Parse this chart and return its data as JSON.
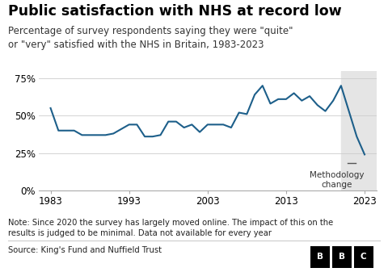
{
  "title": "Public satisfaction with NHS at record low",
  "subtitle": "Percentage of survey respondents saying they were \"quite\"\nor \"very\" satisfied with the NHS in Britain, 1983-2023",
  "note": "Note: Since 2020 the survey has largely moved online. The impact of this on the\nresults is judged to be minimal. Data not available for every year",
  "source": "Source: King's Fund and Nuffield Trust",
  "years": [
    1983,
    1984,
    1986,
    1987,
    1989,
    1990,
    1991,
    1993,
    1994,
    1995,
    1996,
    1997,
    1998,
    1999,
    2000,
    2001,
    2002,
    2003,
    2004,
    2005,
    2006,
    2007,
    2008,
    2009,
    2010,
    2011,
    2012,
    2013,
    2014,
    2015,
    2016,
    2017,
    2018,
    2019,
    2020,
    2021,
    2022,
    2023
  ],
  "values": [
    55,
    40,
    40,
    37,
    37,
    37,
    38,
    44,
    44,
    36,
    36,
    37,
    46,
    46,
    42,
    44,
    39,
    44,
    44,
    44,
    42,
    52,
    51,
    64,
    70,
    58,
    61,
    61,
    65,
    60,
    63,
    57,
    53,
    60,
    70,
    53,
    36,
    24
  ],
  "line_color": "#1d5f8a",
  "shaded_start": 2020,
  "shaded_color": "#e5e5e5",
  "background_color": "#ffffff",
  "text_color": "#000000",
  "annotation_text": "Methodology\nchange",
  "ylim": [
    0,
    80
  ],
  "yticks": [
    0,
    25,
    50,
    75
  ],
  "ytick_labels": [
    "0%",
    "25%",
    "50%",
    "75%"
  ],
  "xticks": [
    1983,
    1993,
    2003,
    2013,
    2023
  ],
  "title_fontsize": 12.5,
  "subtitle_fontsize": 8.5,
  "note_fontsize": 7.2,
  "axis_fontsize": 8.5
}
